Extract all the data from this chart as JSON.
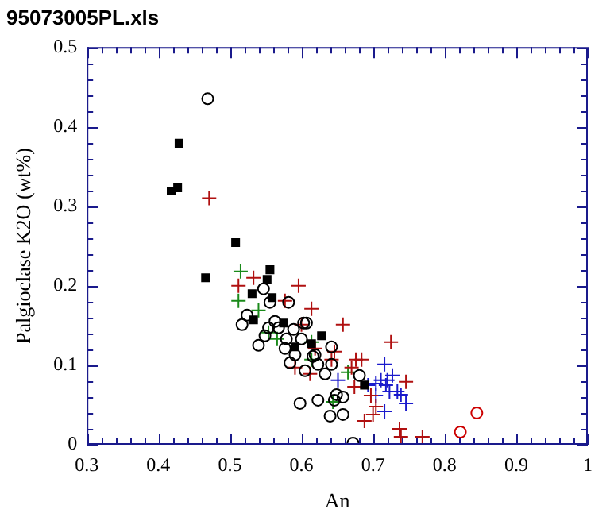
{
  "chart_data": {
    "type": "scatter",
    "title": "95073005PL.xls",
    "xlabel": "An",
    "ylabel": "Palgioclase K2O (wt%)",
    "xlim": [
      0.3,
      1
    ],
    "ylim": [
      0,
      0.5
    ],
    "xticks": [
      0.3,
      {
        "value": 0.32,
        "label": null
      },
      {
        "value": 0.34,
        "label": null
      },
      {
        "value": 0.36,
        "label": null
      },
      {
        "value": 0.38,
        "label": null
      },
      0.4,
      {
        "value": 0.42,
        "label": null
      },
      {
        "value": 0.44,
        "label": null
      },
      {
        "value": 0.46,
        "label": null
      },
      {
        "value": 0.48,
        "label": null
      },
      0.5,
      {
        "value": 0.52,
        "label": null
      },
      {
        "value": 0.54,
        "label": null
      },
      {
        "value": 0.56,
        "label": null
      },
      {
        "value": 0.58,
        "label": null
      },
      0.6,
      {
        "value": 0.62,
        "label": null
      },
      {
        "value": 0.64,
        "label": null
      },
      {
        "value": 0.66,
        "label": null
      },
      {
        "value": 0.68,
        "label": null
      },
      0.7,
      {
        "value": 0.72,
        "label": null
      },
      {
        "value": 0.74,
        "label": null
      },
      {
        "value": 0.76,
        "label": null
      },
      {
        "value": 0.78,
        "label": null
      },
      0.8,
      {
        "value": 0.82,
        "label": null
      },
      {
        "value": 0.84,
        "label": null
      },
      {
        "value": 0.86,
        "label": null
      },
      {
        "value": 0.88,
        "label": null
      },
      0.9,
      {
        "value": 0.92,
        "label": null
      },
      {
        "value": 0.94,
        "label": null
      },
      {
        "value": 0.96,
        "label": null
      },
      {
        "value": 0.98,
        "label": null
      },
      1
    ],
    "yticks": [
      0,
      {
        "value": 0.02,
        "label": null
      },
      {
        "value": 0.04,
        "label": null
      },
      {
        "value": 0.06,
        "label": null
      },
      {
        "value": 0.08,
        "label": null
      },
      0.1,
      {
        "value": 0.12,
        "label": null
      },
      {
        "value": 0.14,
        "label": null
      },
      {
        "value": 0.16,
        "label": null
      },
      {
        "value": 0.18,
        "label": null
      },
      0.2,
      {
        "value": 0.22,
        "label": null
      },
      {
        "value": 0.24,
        "label": null
      },
      {
        "value": 0.26,
        "label": null
      },
      {
        "value": 0.28,
        "label": null
      },
      0.3,
      {
        "value": 0.32,
        "label": null
      },
      {
        "value": 0.34,
        "label": null
      },
      {
        "value": 0.36,
        "label": null
      },
      {
        "value": 0.38,
        "label": null
      },
      0.4,
      {
        "value": 0.42,
        "label": null
      },
      {
        "value": 0.44,
        "label": null
      },
      {
        "value": 0.46,
        "label": null
      },
      {
        "value": 0.48,
        "label": null
      },
      0.5
    ],
    "grid": false,
    "legend": false,
    "series": [
      {
        "marker": "circle",
        "color": "#000000",
        "x": [
          0.469,
          0.547,
          0.556,
          0.524,
          0.517,
          0.54,
          0.549,
          0.563,
          0.568,
          0.582,
          0.589,
          0.603,
          0.579,
          0.6,
          0.577,
          0.591,
          0.584,
          0.605,
          0.619,
          0.633,
          0.598,
          0.623,
          0.64,
          0.646,
          0.554,
          0.607,
          0.658,
          0.649,
          0.658,
          0.642,
          0.681,
          0.672,
          0.616,
          0.642,
          0.623
        ],
        "values": [
          0.435,
          0.196,
          0.179,
          0.163,
          0.151,
          0.125,
          0.137,
          0.155,
          0.147,
          0.179,
          0.145,
          0.153,
          0.133,
          0.133,
          0.121,
          0.113,
          0.103,
          0.093,
          0.113,
          0.089,
          0.052,
          0.056,
          0.036,
          0.056,
          0.147,
          0.153,
          0.038,
          0.063,
          0.06,
          0.101,
          0.087,
          0.002,
          0.111,
          0.123,
          0.101
        ]
      },
      {
        "marker": "square",
        "color": "#000000",
        "x": [
          0.429,
          0.418,
          0.427,
          0.466,
          0.508,
          0.556,
          0.552,
          0.531,
          0.559,
          0.533,
          0.575,
          0.591,
          0.614,
          0.628,
          0.688
        ],
        "values": [
          0.379,
          0.319,
          0.323,
          0.21,
          0.254,
          0.22,
          0.208,
          0.19,
          0.185,
          0.157,
          0.153,
          0.123,
          0.127,
          0.137,
          0.075
        ]
      },
      {
        "marker": "cross",
        "color": "#b01010",
        "x": [
          0.471,
          0.512,
          0.533,
          0.596,
          0.577,
          0.614,
          0.6,
          0.591,
          0.612,
          0.619,
          0.642,
          0.646,
          0.658,
          0.67,
          0.676,
          0.684,
          0.725,
          0.674,
          0.746,
          0.704,
          0.7,
          0.688,
          0.737,
          0.739,
          0.769,
          0.697
        ],
        "values": [
          0.31,
          0.2,
          0.21,
          0.2,
          0.181,
          0.171,
          0.151,
          0.097,
          0.089,
          0.121,
          0.107,
          0.117,
          0.151,
          0.097,
          0.107,
          0.107,
          0.129,
          0.073,
          0.079,
          0.048,
          0.038,
          0.03,
          0.02,
          0.01,
          0.01,
          0.062
        ]
      },
      {
        "marker": "cross",
        "color": "#1a8a1a",
        "x": [
          0.515,
          0.512,
          0.54,
          0.554,
          0.566,
          0.614,
          0.644,
          0.665,
          0.614
        ],
        "values": [
          0.218,
          0.181,
          0.169,
          0.141,
          0.133,
          0.107,
          0.054,
          0.091,
          0.129
        ]
      },
      {
        "marker": "cross",
        "color": "#1a1acc",
        "x": [
          0.716,
          0.727,
          0.651,
          0.704,
          0.711,
          0.718,
          0.723,
          0.734,
          0.704,
          0.739,
          0.746,
          0.716,
          0.72,
          0.693
        ],
        "values": [
          0.101,
          0.087,
          0.081,
          0.077,
          0.081,
          0.075,
          0.067,
          0.067,
          0.062,
          0.063,
          0.052,
          0.042,
          0.081,
          0.075
        ]
      },
      {
        "marker": "circle",
        "color": "#cc0000",
        "x": [
          0.822,
          0.845
        ],
        "values": [
          0.016,
          0.04
        ]
      }
    ]
  }
}
